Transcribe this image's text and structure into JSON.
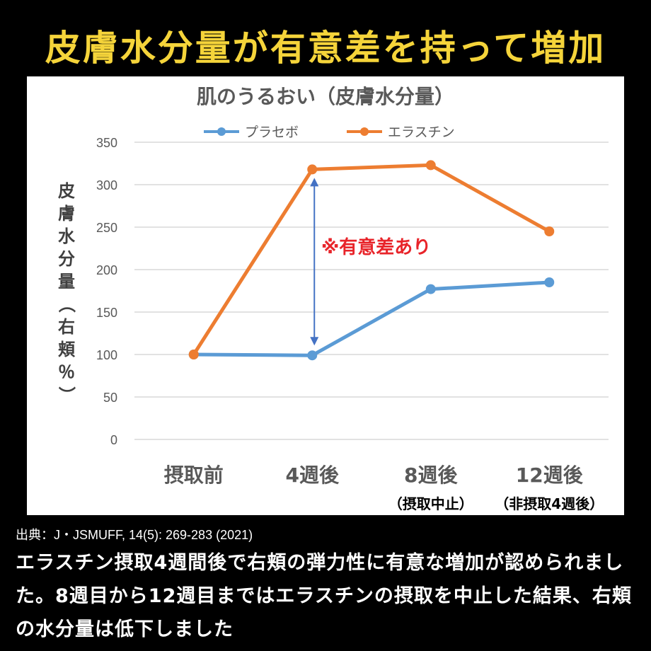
{
  "headline": "皮膚水分量が有意差を持って増加",
  "chart_data": {
    "type": "line",
    "title": "肌のうるおい（皮膚水分量）",
    "ylabel": "皮膚水分量（右頬％）",
    "ylim": [
      0,
      350
    ],
    "yticks": [
      0,
      50,
      100,
      150,
      200,
      250,
      300,
      350
    ],
    "grid": true,
    "legend_position": "top",
    "categories": [
      "摂取前",
      "4週後",
      "8週後",
      "12週後"
    ],
    "category_sublabels": [
      "",
      "",
      "（摂取中止）",
      "（非摂取4週後）"
    ],
    "series": [
      {
        "name": "プラセボ",
        "color": "#5b9bd5",
        "values": [
          100,
          99,
          177,
          185
        ]
      },
      {
        "name": "エラスチン",
        "color": "#ed7d31",
        "values": [
          100,
          318,
          323,
          245
        ]
      }
    ],
    "annotation": {
      "text": "※有意差あり",
      "color": "#e8242a",
      "arrow_color": "#4472c4"
    }
  },
  "source": "出典：J・JSMUFF, 14(5): 269-283 (2021)",
  "body_text": "エラスチン摂取4週間後で右頬の弾力性に有意な増加が認められました。8週目から12週目まではエラスチンの摂取を中止した結果、右頬の水分量は低下しました"
}
